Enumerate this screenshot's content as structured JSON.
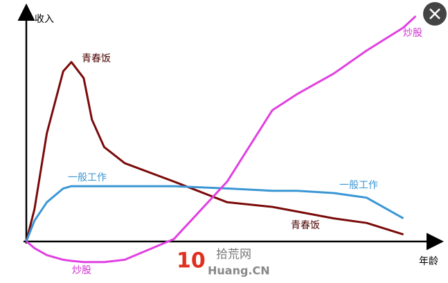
{
  "chart_data": {
    "type": "line",
    "y_label": "收入",
    "x_label": "年龄",
    "x": [
      0,
      2,
      5,
      9,
      11,
      14,
      16,
      19,
      24,
      36,
      49,
      60,
      66,
      75,
      83,
      92,
      95,
      100
    ],
    "xlim": [
      0,
      100
    ],
    "ylim": [
      -10,
      105
    ],
    "series": [
      {
        "name": "青春饭",
        "color": "#7a0a0a",
        "label_color": "#4a0000",
        "values": [
          0,
          14,
          47,
          74,
          78,
          71,
          53,
          41,
          34,
          26,
          17,
          15,
          13,
          10,
          8,
          3,
          null,
          null
        ]
      },
      {
        "name": "一般工作",
        "color": "#3a96d4",
        "label_color": "#3a96d4",
        "values": [
          0,
          9,
          17,
          23,
          24,
          24,
          24,
          24,
          24,
          24,
          23,
          22,
          22,
          21,
          19,
          10,
          null,
          null
        ]
      },
      {
        "name": "炒股",
        "color": "#e040e0",
        "label_color": "#d030d0",
        "values": [
          0,
          -3,
          -6,
          -8,
          -8.5,
          -9,
          -9,
          -9,
          -8,
          1,
          26,
          57,
          64,
          73,
          83,
          93,
          98,
          null
        ]
      }
    ],
    "annotations": [
      "青春饭",
      "一般工作",
      "炒股"
    ],
    "watermark": {
      "logo": "10",
      "text": "拾荒网",
      "site": "Huang.CN"
    }
  }
}
